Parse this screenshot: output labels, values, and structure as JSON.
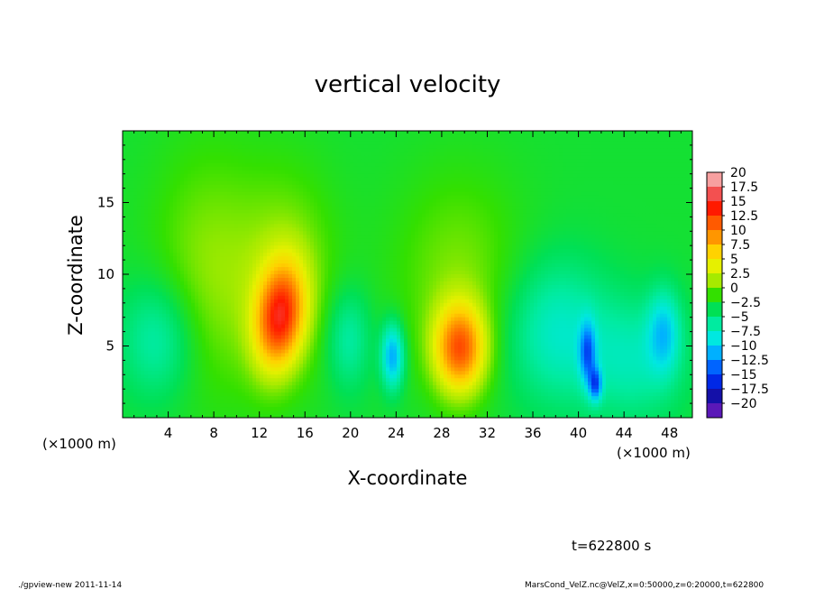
{
  "chart_data": {
    "type": "heatmap",
    "title": "vertical velocity",
    "xlabel": "X-coordinate",
    "ylabel": "Z-coordinate",
    "x_unit_left": "(×1000 m)",
    "x_unit_right": "(×1000 m)",
    "y_unit": "(×1000 m)",
    "xlim": [
      0,
      50
    ],
    "ylim": [
      0,
      20
    ],
    "x_ticks": [
      4,
      8,
      12,
      16,
      20,
      24,
      28,
      32,
      36,
      40,
      44,
      48
    ],
    "x_tick_labels": [
      "4",
      "8",
      "12",
      "16",
      "20",
      "24",
      "28",
      "32",
      "36",
      "40",
      "44",
      "48"
    ],
    "y_ticks": [
      5,
      10,
      15
    ],
    "y_tick_labels": [
      "5",
      "10",
      "15"
    ],
    "colorbar": {
      "levels": [
        20,
        17.5,
        15,
        12.5,
        10,
        7.5,
        5,
        2.5,
        0,
        -2.5,
        -5,
        -7.5,
        -10,
        -12.5,
        -15,
        -17.5,
        -20
      ],
      "labels": [
        "20",
        "17.5",
        "15",
        "12.5",
        "10",
        "7.5",
        "5",
        "2.5",
        "0",
        "−2.5",
        "−5",
        "−7.5",
        "−10",
        "−12.5",
        "−15",
        "−17.5",
        "−20"
      ],
      "colors": [
        "#f7a0a0",
        "#f35050",
        "#ff1a00",
        "#ff5a00",
        "#ff9600",
        "#ffd200",
        "#e6f000",
        "#a6ea00",
        "#33e000",
        "#00e055",
        "#00eba0",
        "#00e8e0",
        "#00b0ff",
        "#0064ff",
        "#0028e6",
        "#1410a8",
        "#5a18b8"
      ]
    },
    "background_value": -1.5,
    "features": [
      {
        "x": 13.8,
        "z": 7.0,
        "peak": 14,
        "sx": 1.5,
        "sz": 2.6,
        "tilt": 0.1
      },
      {
        "x": 29.6,
        "z": 4.8,
        "peak": 13,
        "sx": 1.6,
        "sz": 2.2,
        "tilt": 0.0
      },
      {
        "x": 7.5,
        "z": 10,
        "peak": 3.5,
        "sx": 3.5,
        "sz": 6,
        "tilt": 0.0
      },
      {
        "x": 14.5,
        "z": 10,
        "peak": 3.5,
        "sx": 3.0,
        "sz": 5,
        "tilt": 0.0
      },
      {
        "x": 29.5,
        "z": 10,
        "peak": 3,
        "sx": 4.0,
        "sz": 5,
        "tilt": 0.0
      },
      {
        "x": 3.2,
        "z": 5.5,
        "peak": -4.5,
        "sx": 2.4,
        "sz": 3,
        "tilt": 0.0
      },
      {
        "x": 19.8,
        "z": 5.5,
        "peak": -4,
        "sx": 1.4,
        "sz": 2.5,
        "tilt": 0.0
      },
      {
        "x": 23.7,
        "z": 4.3,
        "peak": -9,
        "sx": 0.7,
        "sz": 1.6,
        "tilt": 0.0
      },
      {
        "x": 38.0,
        "z": 6.0,
        "peak": -5,
        "sx": 3.2,
        "sz": 3.5,
        "tilt": 0.0
      },
      {
        "x": 40.8,
        "z": 4.5,
        "peak": -8,
        "sx": 0.5,
        "sz": 1.5,
        "tilt": 0.0
      },
      {
        "x": 41.5,
        "z": 2.3,
        "peak": -9,
        "sx": 0.4,
        "sz": 0.8,
        "tilt": 0.0
      },
      {
        "x": 47.5,
        "z": 6.0,
        "peak": -6,
        "sx": 1.0,
        "sz": 2.0,
        "tilt": 0.0
      },
      {
        "x": 45.0,
        "z": 4.0,
        "peak": -4,
        "sx": 3.0,
        "sz": 3.0,
        "tilt": 0.0
      }
    ]
  },
  "time_label": "t=622800 s",
  "footer_left": "./gpview-new  2011-11-14",
  "footer_right": "MarsCond_VelZ.nc@VelZ,x=0:50000,z=0:20000,t=622800"
}
